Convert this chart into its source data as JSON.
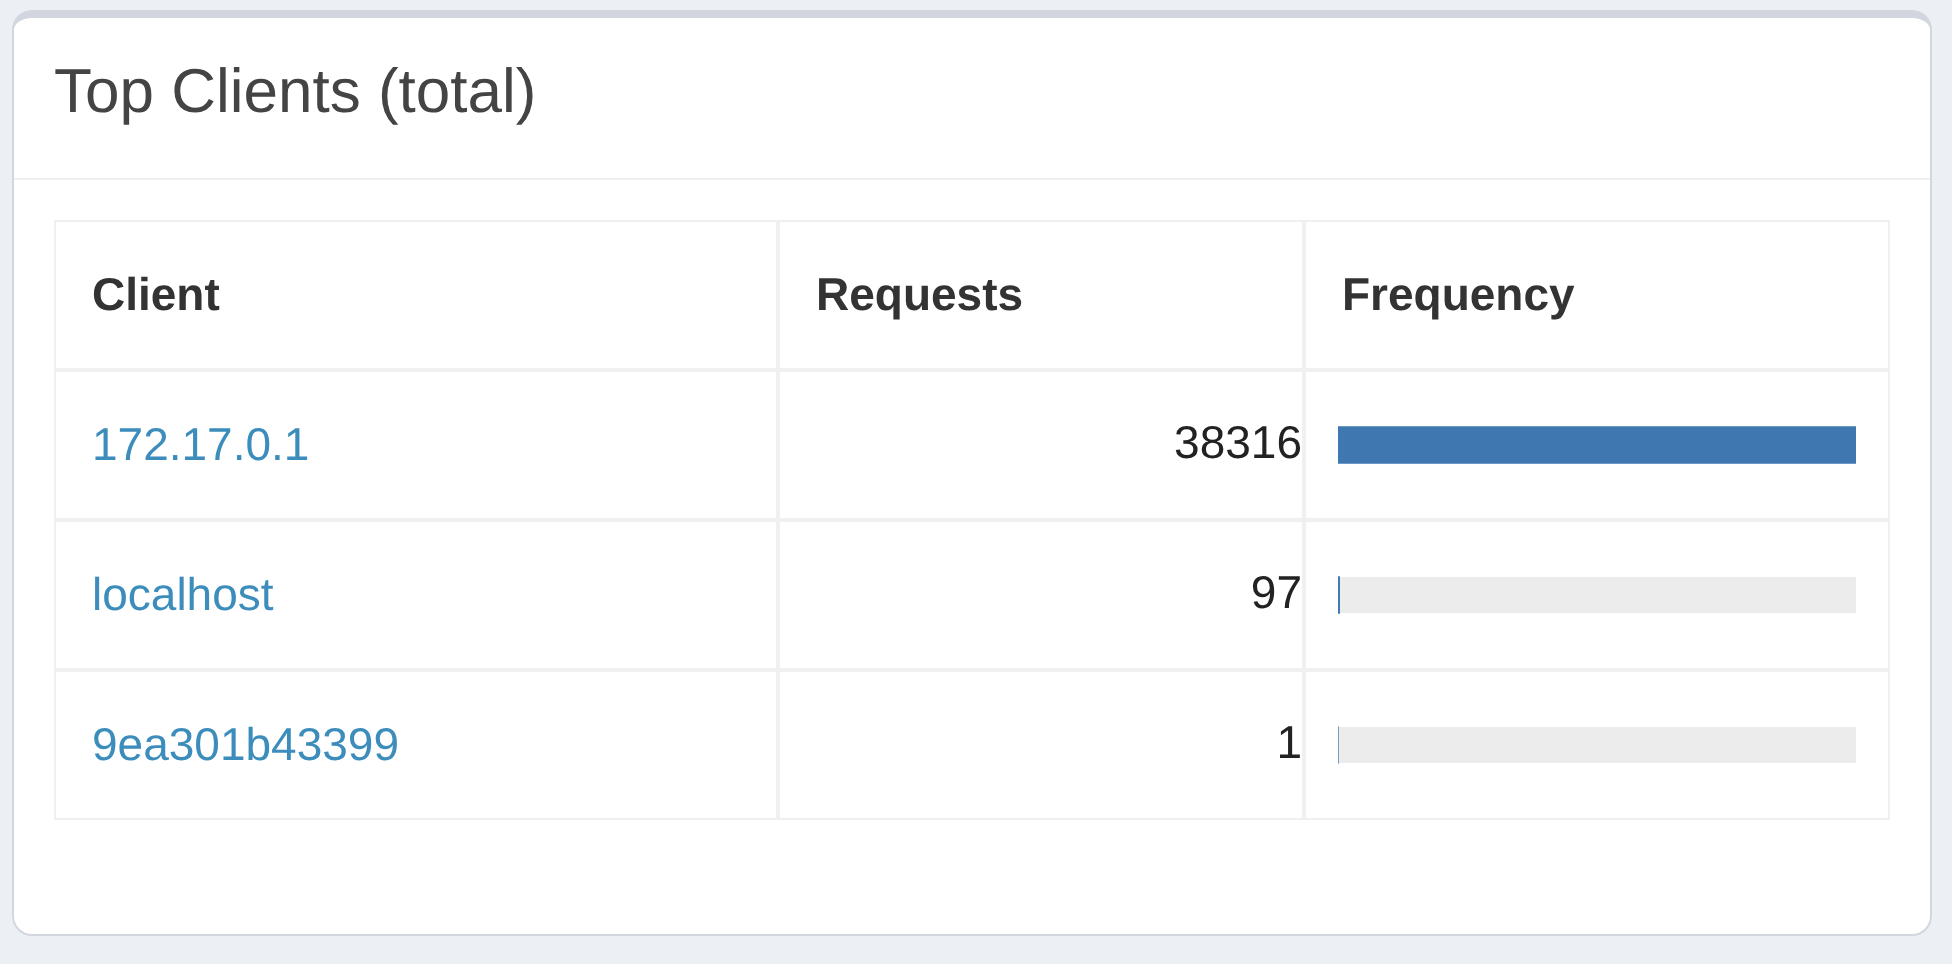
{
  "chart_data": {
    "type": "bar",
    "orientation": "horizontal",
    "title": "Top Clients (total)",
    "ylabel": "Client",
    "xlabel": "Frequency",
    "annotations": [
      "Requests"
    ],
    "categories": [
      "172.17.0.1",
      "localhost",
      "9ea301b43399"
    ],
    "values": [
      38316,
      97,
      1
    ],
    "color": "#3f77b1",
    "data_labels": true,
    "legend": false
  }
}
